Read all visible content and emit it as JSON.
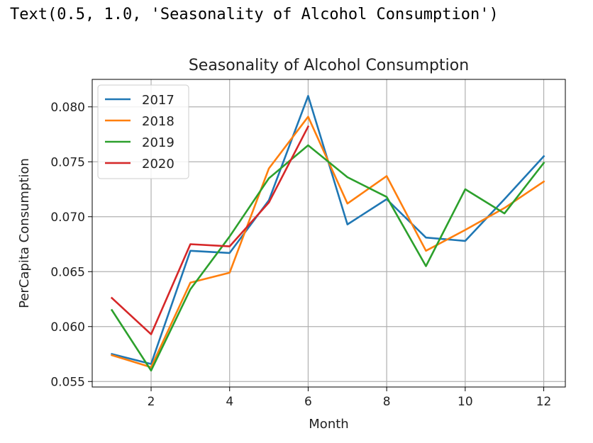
{
  "output_repr": "Text(0.5, 1.0, 'Seasonality of Alcohol Consumption')",
  "chart_data": {
    "type": "line",
    "title": "Seasonality of Alcohol Consumption",
    "xlabel": "Month",
    "ylabel": "PerCapita Consumption",
    "xlim": [
      0.5,
      12.55
    ],
    "ylim": [
      0.0545,
      0.0825
    ],
    "xticks": [
      2,
      4,
      6,
      8,
      10,
      12
    ],
    "yticks": [
      0.055,
      0.06,
      0.065,
      0.07,
      0.075,
      0.08
    ],
    "ytick_labels": [
      "0.055",
      "0.060",
      "0.065",
      "0.070",
      "0.075",
      "0.080"
    ],
    "grid": true,
    "legend_position": "upper-left",
    "series": [
      {
        "name": "2017",
        "color": "#1f77b4",
        "x": [
          1,
          2,
          3,
          4,
          5,
          6,
          7,
          8,
          9,
          10,
          11,
          12
        ],
        "values": [
          0.0575,
          0.0566,
          0.0669,
          0.0667,
          0.0715,
          0.081,
          0.0693,
          0.0716,
          0.0681,
          0.0678,
          0.0716,
          0.0755
        ]
      },
      {
        "name": "2018",
        "color": "#ff7f0e",
        "x": [
          1,
          2,
          3,
          4,
          5,
          6,
          7,
          8,
          9,
          10,
          11,
          12
        ],
        "values": [
          0.0574,
          0.0563,
          0.064,
          0.0649,
          0.0744,
          0.0791,
          0.0712,
          0.0737,
          0.0669,
          0.0688,
          0.0708,
          0.0732
        ]
      },
      {
        "name": "2019",
        "color": "#2ca02c",
        "x": [
          1,
          2,
          3,
          4,
          5,
          6,
          7,
          8,
          9,
          10,
          11,
          12
        ],
        "values": [
          0.0615,
          0.056,
          0.0634,
          0.0682,
          0.0735,
          0.0765,
          0.0736,
          0.0718,
          0.0655,
          0.0725,
          0.0703,
          0.0749
        ]
      },
      {
        "name": "2020",
        "color": "#d62728",
        "x": [
          1,
          2,
          3,
          4,
          5,
          6
        ],
        "values": [
          0.0626,
          0.0593,
          0.0675,
          0.0673,
          0.0713,
          0.0782
        ]
      }
    ]
  }
}
